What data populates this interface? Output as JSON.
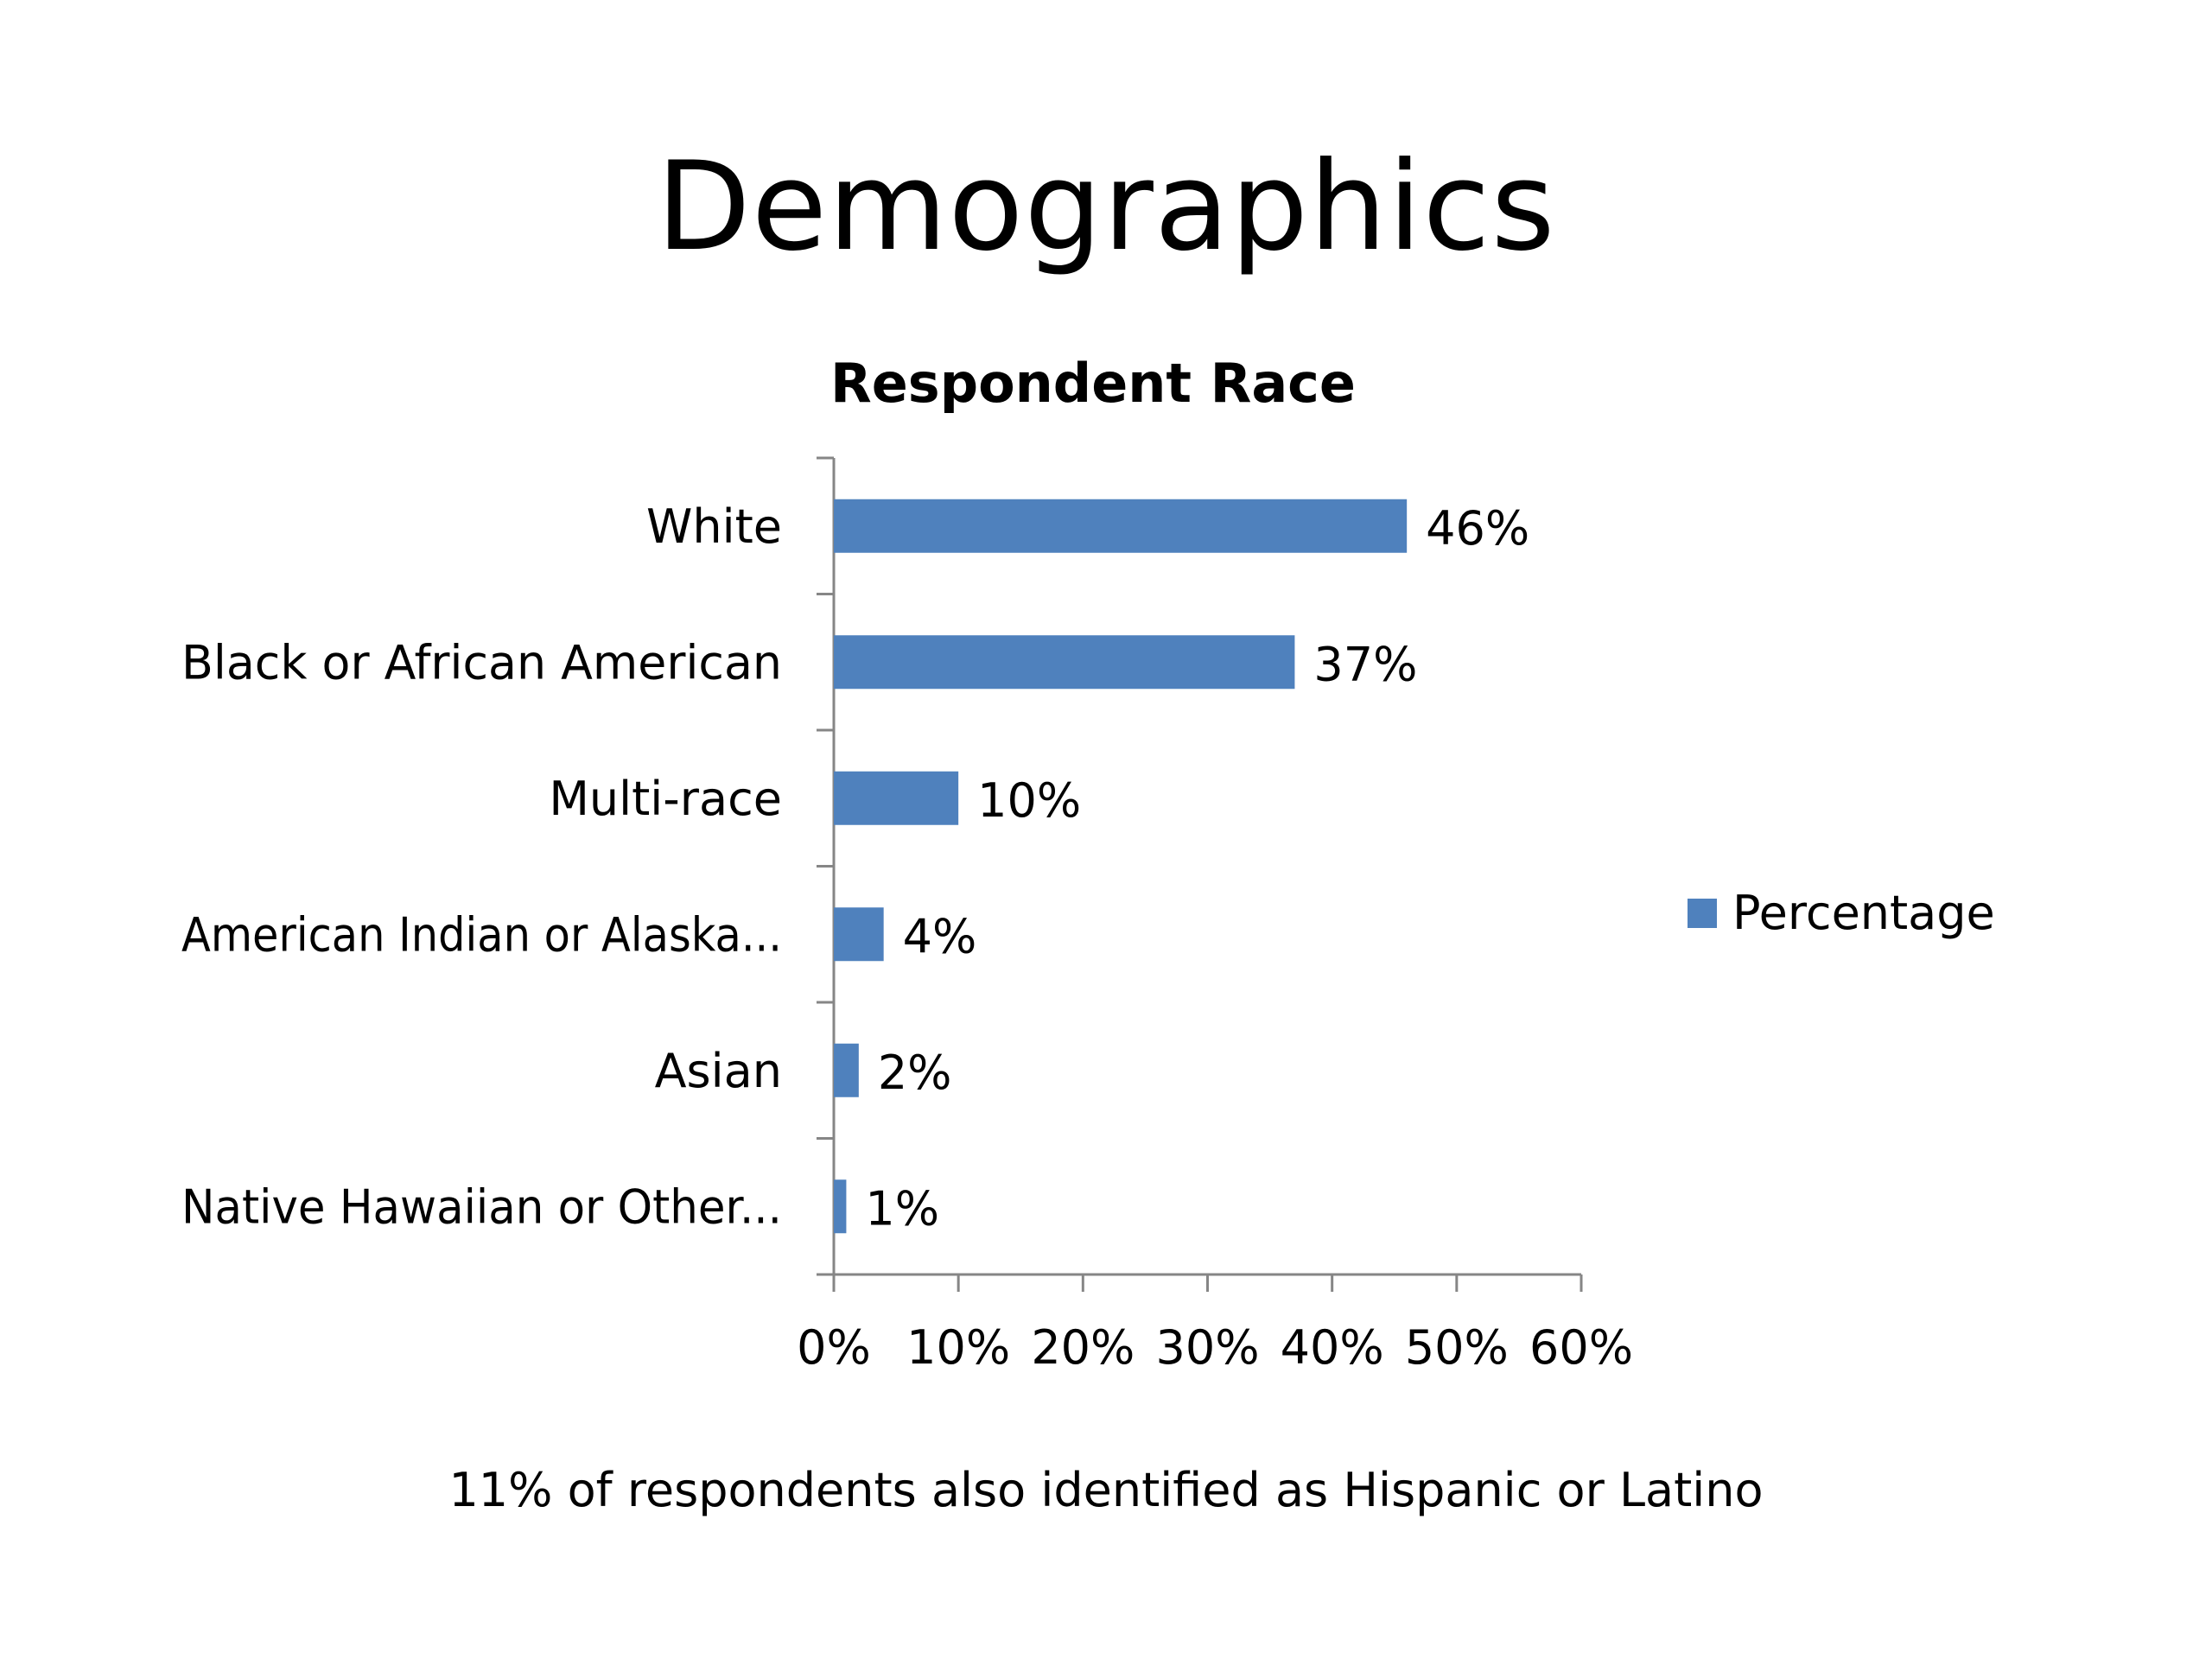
{
  "slide": {
    "title": "Demographics",
    "footnote": "11% of respondents also identified as Hispanic or Latino"
  },
  "chart_data": {
    "type": "bar",
    "orientation": "horizontal",
    "title": "Respondent Race",
    "categories": [
      "White",
      "Black or African American",
      "Multi-race",
      "American Indian or Alaska...",
      "Asian",
      "Native Hawaiian or Other..."
    ],
    "series": [
      {
        "name": "Percentage",
        "values": [
          46,
          37,
          10,
          4,
          2,
          1
        ],
        "data_labels": [
          "46%",
          "37%",
          "10%",
          "4%",
          "2%",
          "1%"
        ],
        "color": "#4F81BD"
      }
    ],
    "xlim": [
      0,
      60
    ],
    "xticks": [
      0,
      10,
      20,
      30,
      40,
      50,
      60
    ],
    "xtick_labels": [
      "0%",
      "10%",
      "20%",
      "30%",
      "40%",
      "50%",
      "60%"
    ],
    "xlabel": "",
    "ylabel": "",
    "grid": false,
    "legend_position": "right",
    "axis_color": "#868686"
  }
}
